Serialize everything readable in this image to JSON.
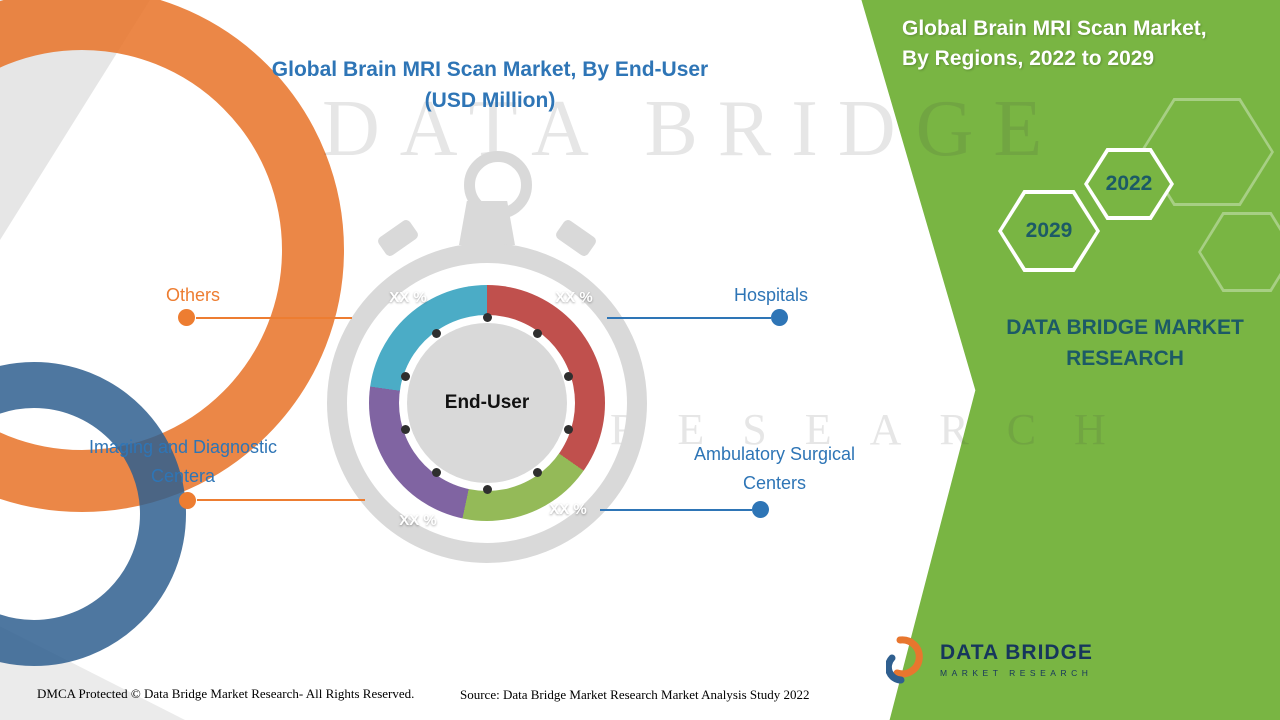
{
  "colors": {
    "panel_green": "#79b543",
    "title_blue": "#2e75b6",
    "accent_orange": "#ed7d31",
    "dark_teal": "#1c5a66"
  },
  "title": {
    "line1": "Global Brain MRI Scan Market, By End-User",
    "line2": "(USD Million)"
  },
  "side_panel": {
    "heading_line1": "Global Brain MRI Scan Market,",
    "heading_line2": "By Regions, 2022 to 2029",
    "hexagon_years": [
      "2029",
      "2022"
    ],
    "brand_text": "DATA BRIDGE MARKET RESEARCH"
  },
  "chart_data": {
    "type": "pie",
    "title": "Global Brain MRI Scan Market, By End-User (USD Million)",
    "center_label": "End-User",
    "segments": [
      {
        "label": "Hospitals",
        "value_label": "XX %",
        "color": "#c0504d",
        "start_angle": 0,
        "end_angle": 125
      },
      {
        "label": "Ambulatory Surgical Centers",
        "value_label": "XX %",
        "color": "#94ba58",
        "start_angle": 125,
        "end_angle": 192
      },
      {
        "label": "Imaging and Diagnostic Centera",
        "value_label": "XX %",
        "color": "#8064a2",
        "start_angle": 192,
        "end_angle": 278
      },
      {
        "label": "Others",
        "value_label": "XX %",
        "color": "#4bacc6",
        "start_angle": 278,
        "end_angle": 360
      }
    ],
    "legend_position": "callouts"
  },
  "watermark": {
    "line1": "DATA BRIDGE",
    "line2": "RESEARCH"
  },
  "logo": {
    "name": "DATA BRIDGE",
    "subtext": "MARKET RESEARCH"
  },
  "footer": {
    "dmca": "DMCA Protected © Data Bridge Market Research- All Rights Reserved.",
    "source": "Source: Data Bridge Market Research Market Analysis Study 2022"
  }
}
